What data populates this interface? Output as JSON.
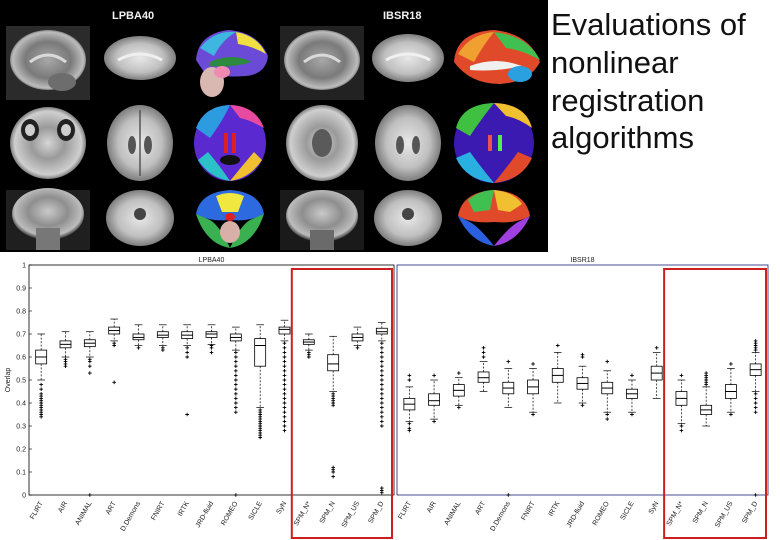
{
  "slide": {
    "title": "Evaluations of nonlinear registration algorithms"
  },
  "figure": {
    "left_label": "LPBA40",
    "right_label": "IBSR18"
  },
  "chart_data": [
    {
      "type": "box",
      "title": "LPBA40",
      "ylabel": "Overlap",
      "ylim": [
        0,
        1
      ],
      "yticks": [
        "0",
        "0.1",
        "0.2",
        "0.3",
        "0.4",
        "0.5",
        "0.6",
        "0.7",
        "0.8",
        "0.9",
        "1"
      ],
      "highlighted": [
        "SPM_N*",
        "SPM_N",
        "SPM_US",
        "SPM_D"
      ],
      "categories": [
        "FLIRT",
        "AIR",
        "ANIMAL",
        "ART",
        "D.Demons",
        "FNIRT",
        "IRTK",
        "JRD-fluid",
        "ROMEO",
        "SICLE",
        "SyN",
        "SPM_N*",
        "SPM_N",
        "SPM_US",
        "SPM_D"
      ],
      "boxes": [
        {
          "q1": 0.57,
          "median": 0.6,
          "q3": 0.63,
          "wlow": 0.5,
          "whigh": 0.7,
          "outliers": [
            0.48,
            0.46,
            0.44,
            0.43,
            0.42,
            0.41,
            0.4,
            0.39,
            0.38,
            0.37,
            0.36,
            0.35,
            0.34
          ]
        },
        {
          "q1": 0.64,
          "median": 0.655,
          "q3": 0.67,
          "wlow": 0.6,
          "whigh": 0.71,
          "outliers": [
            0.59,
            0.58,
            0.57,
            0.56
          ]
        },
        {
          "q1": 0.645,
          "median": 0.66,
          "q3": 0.675,
          "wlow": 0.6,
          "whigh": 0.71,
          "outliers": [
            0.59,
            0.58,
            0.56,
            0.53,
            0.0
          ]
        },
        {
          "q1": 0.7,
          "median": 0.715,
          "q3": 0.73,
          "wlow": 0.67,
          "whigh": 0.765,
          "outliers": [
            0.66,
            0.65,
            0.49
          ]
        },
        {
          "q1": 0.675,
          "median": 0.685,
          "q3": 0.7,
          "wlow": 0.65,
          "whigh": 0.74,
          "outliers": [
            0.64
          ]
        },
        {
          "q1": 0.685,
          "median": 0.695,
          "q3": 0.71,
          "wlow": 0.65,
          "whigh": 0.74,
          "outliers": [
            0.64,
            0.63
          ]
        },
        {
          "q1": 0.68,
          "median": 0.695,
          "q3": 0.71,
          "wlow": 0.65,
          "whigh": 0.74,
          "outliers": [
            0.64,
            0.62,
            0.6,
            0.35
          ]
        },
        {
          "q1": 0.685,
          "median": 0.7,
          "q3": 0.71,
          "wlow": 0.655,
          "whigh": 0.74,
          "outliers": [
            0.65,
            0.64,
            0.62
          ]
        },
        {
          "q1": 0.67,
          "median": 0.685,
          "q3": 0.7,
          "wlow": 0.63,
          "whigh": 0.73,
          "outliers": [
            0.62,
            0.6,
            0.58,
            0.56,
            0.54,
            0.52,
            0.5,
            0.48,
            0.46,
            0.44,
            0.42,
            0.4,
            0.38,
            0.36,
            0.0
          ]
        },
        {
          "q1": 0.56,
          "median": 0.65,
          "q3": 0.68,
          "wlow": 0.38,
          "whigh": 0.74,
          "outliers": [
            0.37,
            0.36,
            0.35,
            0.34,
            0.33,
            0.32,
            0.31,
            0.3,
            0.29,
            0.28,
            0.27,
            0.26,
            0.25
          ]
        },
        {
          "q1": 0.7,
          "median": 0.72,
          "q3": 0.73,
          "wlow": 0.67,
          "whigh": 0.76,
          "outliers": [
            0.66,
            0.64,
            0.62,
            0.6,
            0.58,
            0.56,
            0.54,
            0.52,
            0.5,
            0.48,
            0.46,
            0.44,
            0.42,
            0.4,
            0.38,
            0.36,
            0.34,
            0.32,
            0.3,
            0.28
          ]
        },
        {
          "q1": 0.655,
          "median": 0.665,
          "q3": 0.675,
          "wlow": 0.63,
          "whigh": 0.7,
          "outliers": [
            0.62,
            0.61,
            0.6
          ]
        },
        {
          "q1": 0.54,
          "median": 0.57,
          "q3": 0.61,
          "wlow": 0.45,
          "whigh": 0.69,
          "outliers": [
            0.44,
            0.43,
            0.42,
            0.41,
            0.4,
            0.39,
            0.12,
            0.11,
            0.1,
            0.08
          ]
        },
        {
          "q1": 0.67,
          "median": 0.685,
          "q3": 0.7,
          "wlow": 0.65,
          "whigh": 0.73,
          "outliers": [
            0.64
          ]
        },
        {
          "q1": 0.7,
          "median": 0.71,
          "q3": 0.725,
          "wlow": 0.67,
          "whigh": 0.75,
          "outliers": [
            0.66,
            0.64,
            0.62,
            0.6,
            0.58,
            0.56,
            0.54,
            0.52,
            0.5,
            0.48,
            0.46,
            0.44,
            0.42,
            0.4,
            0.38,
            0.36,
            0.34,
            0.32,
            0.3,
            0.03,
            0.02,
            0.01
          ]
        }
      ]
    },
    {
      "type": "box",
      "title": "IBSR18",
      "ylim": [
        0,
        1
      ],
      "highlighted": [
        "SPM_N*",
        "SPM_N",
        "SPM_US",
        "SPM_D"
      ],
      "categories": [
        "FLIRT",
        "AIR",
        "ANIMAL",
        "ART",
        "D.Demons",
        "FNIRT",
        "IRTK",
        "JRD-fluid",
        "ROMEO",
        "SICLE",
        "SyN",
        "SPM_N*",
        "SPM_N",
        "SPM_US",
        "SPM_D"
      ],
      "boxes": [
        {
          "q1": 0.37,
          "median": 0.395,
          "q3": 0.42,
          "wlow": 0.32,
          "whigh": 0.47,
          "outliers": [
            0.31,
            0.29,
            0.28,
            0.5,
            0.52
          ]
        },
        {
          "q1": 0.39,
          "median": 0.41,
          "q3": 0.44,
          "wlow": 0.33,
          "whigh": 0.5,
          "outliers": [
            0.32,
            0.52
          ]
        },
        {
          "q1": 0.43,
          "median": 0.455,
          "q3": 0.48,
          "wlow": 0.39,
          "whigh": 0.51,
          "outliers": [
            0.38,
            0.53
          ]
        },
        {
          "q1": 0.49,
          "median": 0.51,
          "q3": 0.535,
          "wlow": 0.45,
          "whigh": 0.58,
          "outliers": [
            0.6,
            0.62,
            0.64
          ]
        },
        {
          "q1": 0.44,
          "median": 0.465,
          "q3": 0.49,
          "wlow": 0.38,
          "whigh": 0.55,
          "outliers": [
            0.58,
            0.0
          ]
        },
        {
          "q1": 0.44,
          "median": 0.47,
          "q3": 0.5,
          "wlow": 0.36,
          "whigh": 0.55,
          "outliers": [
            0.35,
            0.57
          ]
        },
        {
          "q1": 0.49,
          "median": 0.52,
          "q3": 0.55,
          "wlow": 0.4,
          "whigh": 0.62,
          "outliers": [
            0.65
          ]
        },
        {
          "q1": 0.46,
          "median": 0.485,
          "q3": 0.51,
          "wlow": 0.4,
          "whigh": 0.56,
          "outliers": [
            0.6,
            0.61,
            0.39
          ]
        },
        {
          "q1": 0.44,
          "median": 0.465,
          "q3": 0.49,
          "wlow": 0.36,
          "whigh": 0.54,
          "outliers": [
            0.35,
            0.33,
            0.58
          ]
        },
        {
          "q1": 0.42,
          "median": 0.44,
          "q3": 0.46,
          "wlow": 0.36,
          "whigh": 0.5,
          "outliers": [
            0.35,
            0.52
          ]
        },
        {
          "q1": 0.5,
          "median": 0.53,
          "q3": 0.56,
          "wlow": 0.42,
          "whigh": 0.62,
          "outliers": [
            0.64
          ]
        },
        {
          "q1": 0.39,
          "median": 0.42,
          "q3": 0.45,
          "wlow": 0.31,
          "whigh": 0.5,
          "outliers": [
            0.3,
            0.28,
            0.52
          ]
        },
        {
          "q1": 0.35,
          "median": 0.37,
          "q3": 0.39,
          "wlow": 0.3,
          "whigh": 0.47,
          "outliers": [
            0.48,
            0.49,
            0.5,
            0.51,
            0.52,
            0.53
          ]
        },
        {
          "q1": 0.42,
          "median": 0.45,
          "q3": 0.48,
          "wlow": 0.36,
          "whigh": 0.55,
          "outliers": [
            0.35,
            0.57
          ]
        },
        {
          "q1": 0.52,
          "median": 0.545,
          "q3": 0.57,
          "wlow": 0.45,
          "whigh": 0.62,
          "outliers": [
            0.63,
            0.64,
            0.65,
            0.66,
            0.67,
            0.44,
            0.42,
            0.4,
            0.38,
            0.36,
            0.0
          ]
        }
      ]
    }
  ],
  "colors": {
    "highlight_box": "#cc1f1f",
    "panel_divider": "#1b1f7a",
    "box_stroke": "#000000",
    "mri_background": "#000000"
  }
}
